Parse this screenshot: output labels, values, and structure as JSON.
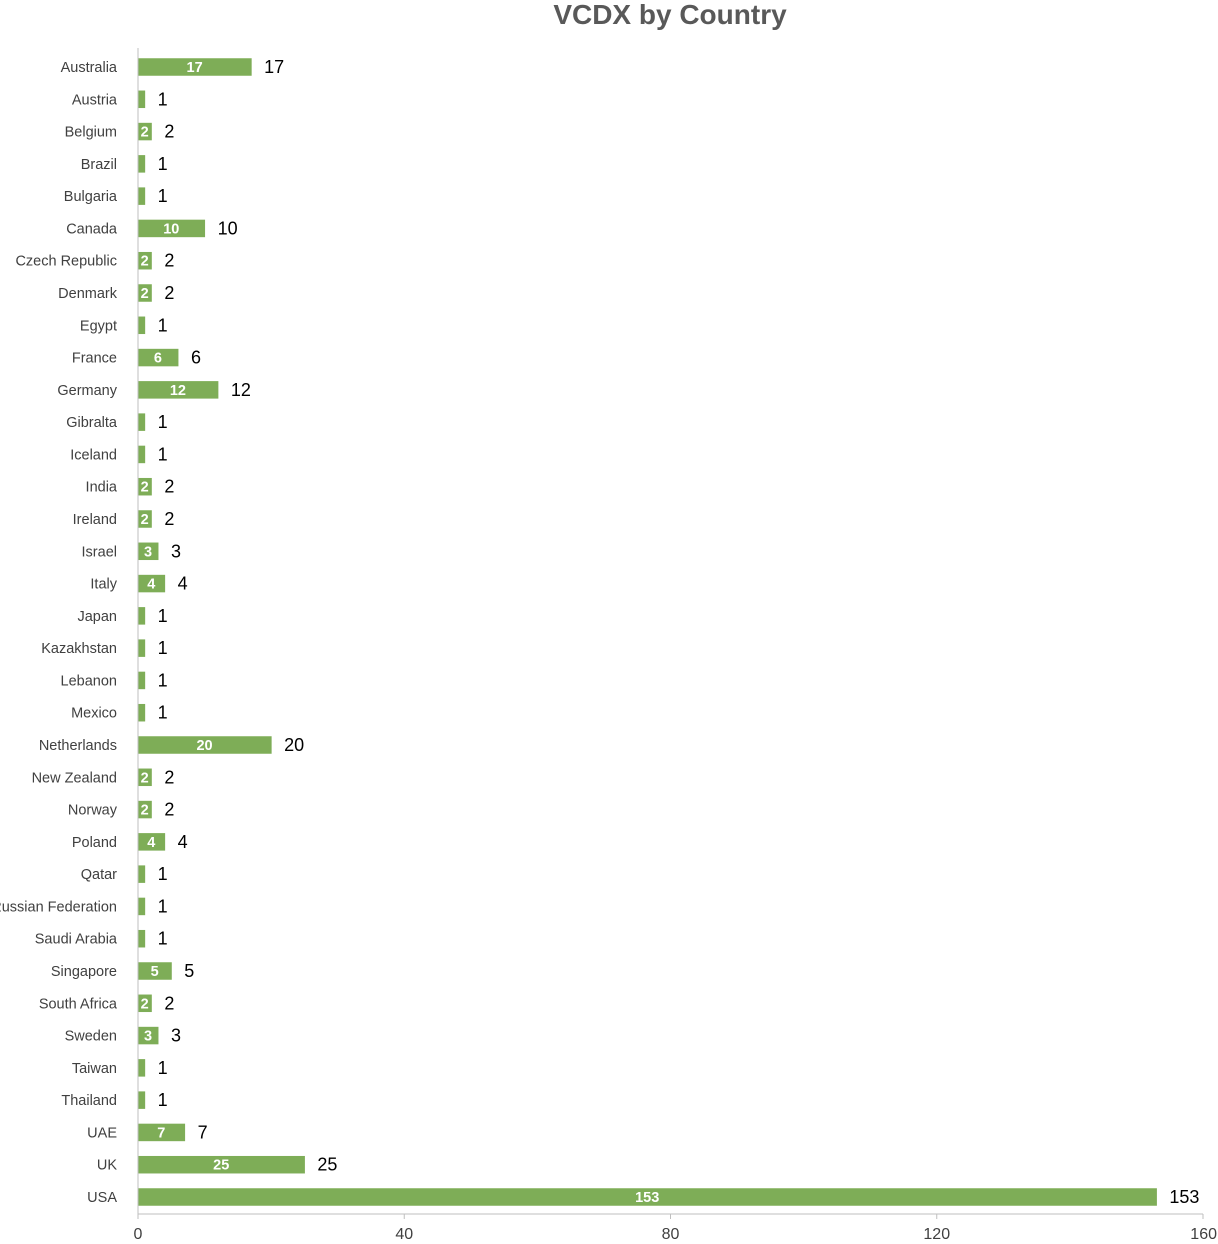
{
  "chart_data": {
    "type": "bar",
    "orientation": "horizontal",
    "title": "VCDX by Country",
    "xlabel": "",
    "ylabel": "",
    "xlim": [
      0,
      160
    ],
    "x_ticks": [
      0,
      40,
      80,
      120,
      160
    ],
    "grid": false,
    "bar_color": "#7ead57",
    "data_labels": "inside-end and outside-end",
    "categories": [
      "Australia",
      "Austria",
      "Belgium",
      "Brazil",
      "Bulgaria",
      "Canada",
      "Czech Republic",
      "Denmark",
      "Egypt",
      "France",
      "Germany",
      "Gibralta",
      "Iceland",
      "India",
      "Ireland",
      "Israel",
      "Italy",
      "Japan",
      "Kazakhstan",
      "Lebanon",
      "Mexico",
      "Netherlands",
      "New Zealand",
      "Norway",
      "Poland",
      "Qatar",
      "Russian Federation",
      "Saudi Arabia",
      "Singapore",
      "South Africa",
      "Sweden",
      "Taiwan",
      "Thailand",
      "UAE",
      "UK",
      "USA"
    ],
    "values": [
      17,
      1,
      2,
      1,
      1,
      10,
      2,
      2,
      1,
      6,
      12,
      1,
      1,
      2,
      2,
      3,
      4,
      1,
      1,
      1,
      1,
      20,
      2,
      2,
      4,
      1,
      1,
      1,
      5,
      2,
      3,
      1,
      1,
      7,
      25,
      153
    ]
  }
}
